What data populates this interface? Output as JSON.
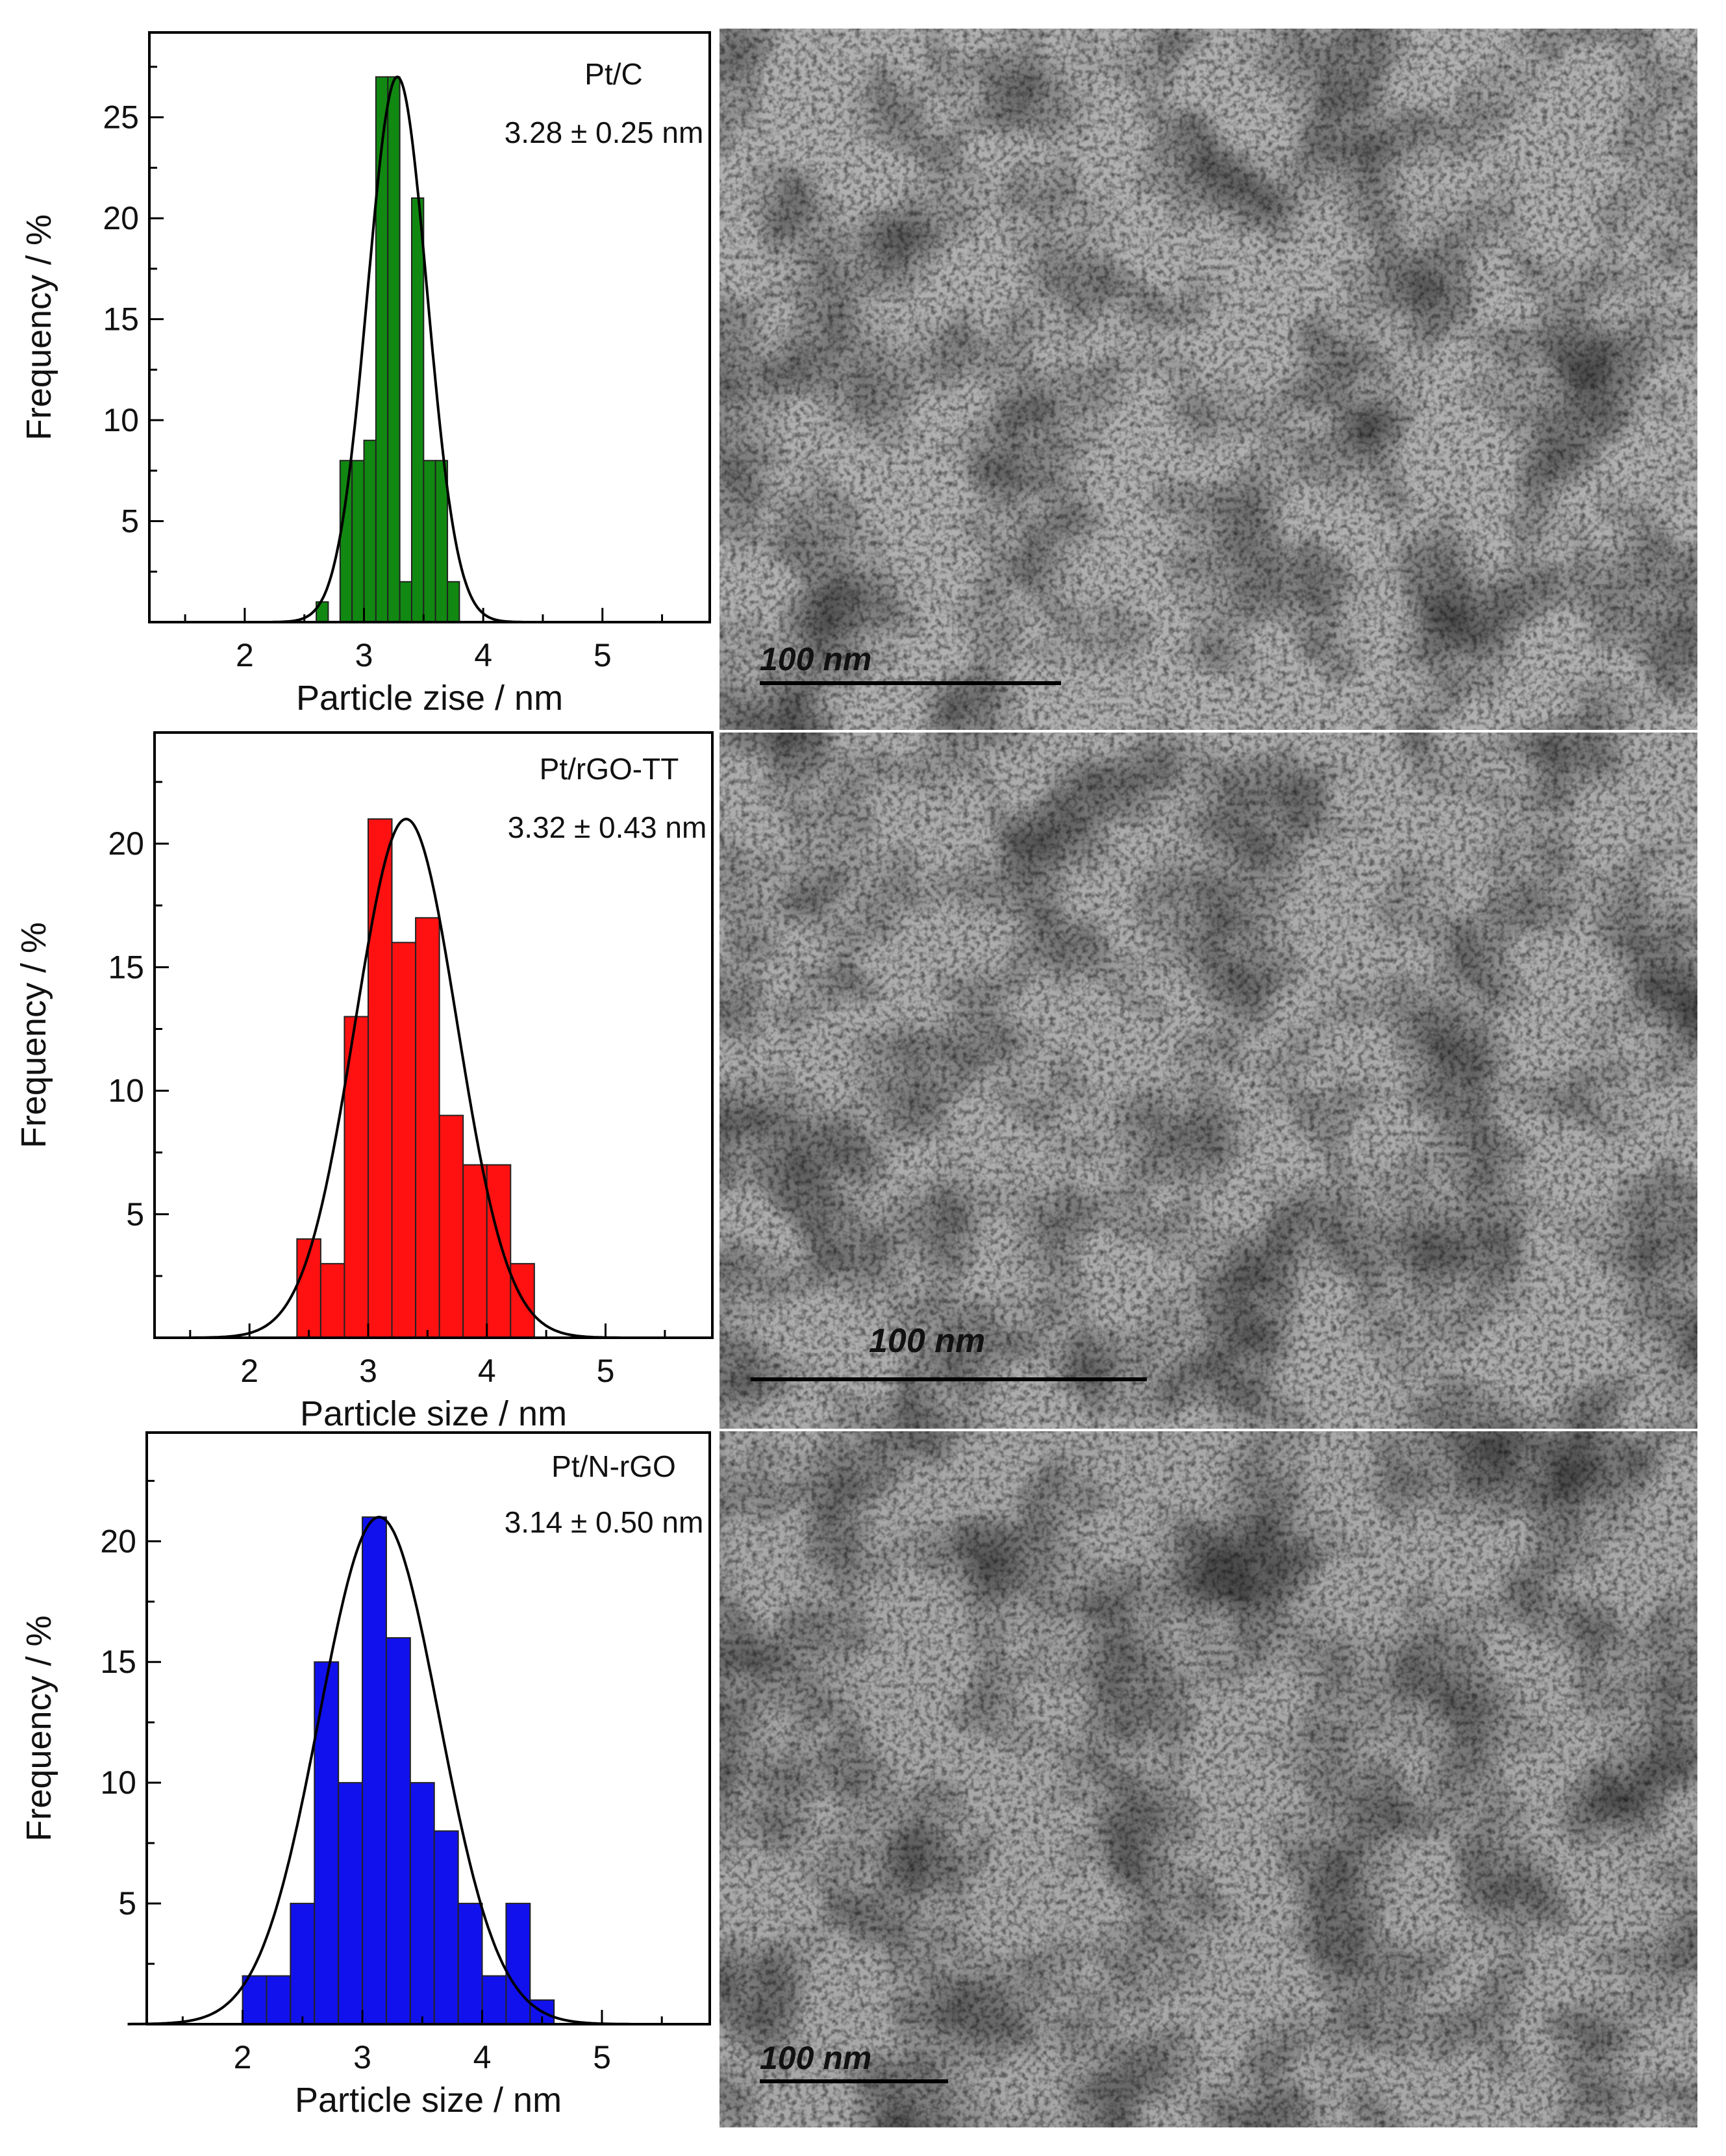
{
  "chart_data": [
    {
      "type": "bar",
      "sample": "Pt/C",
      "stat": "3.28 ± 0.25 nm",
      "xlabel": "Particle zise / nm",
      "ylabel": "Frequency / %",
      "xlim": [
        1.2,
        5.9
      ],
      "ylim": [
        0,
        29.2
      ],
      "xticks": [
        2,
        3,
        4,
        5
      ],
      "yticks": [
        5,
        10,
        15,
        20,
        25
      ],
      "bin_width": 0.1,
      "color": "#118811",
      "bin_starts": [
        2.6,
        2.8,
        2.9,
        3.0,
        3.1,
        3.2,
        3.3,
        3.4,
        3.5,
        3.6,
        3.7
      ],
      "values": [
        1,
        8,
        8,
        9,
        27,
        27,
        2,
        21,
        8,
        8,
        2
      ],
      "fit": {
        "mean": 3.28,
        "sigma": 0.25,
        "peak": 27
      },
      "micrograph": {
        "scale_label": "100 nm",
        "tone": 176
      }
    },
    {
      "type": "bar",
      "sample": "Pt/rGO-TT",
      "stat": "3.32 ± 0.43 nm",
      "xlabel": "Particle size / nm",
      "ylabel": "Frequency / %",
      "xlim": [
        1.2,
        5.9
      ],
      "ylim": [
        0,
        24.5
      ],
      "xticks": [
        2,
        3,
        4,
        5
      ],
      "yticks": [
        5,
        10,
        15,
        20
      ],
      "bin_width": 0.2,
      "color": "#ff1111",
      "bin_starts": [
        2.4,
        2.6,
        2.8,
        3.0,
        3.2,
        3.4,
        3.6,
        3.8,
        4.0,
        4.2
      ],
      "values": [
        4,
        3,
        13,
        21,
        16,
        17,
        9,
        7,
        7,
        3
      ],
      "fit": {
        "mean": 3.32,
        "sigma": 0.43,
        "peak": 21
      },
      "micrograph": {
        "scale_label": "100 nm",
        "tone": 172
      }
    },
    {
      "type": "bar",
      "sample": "Pt/N-rGO",
      "stat": "3.14 ± 0.50 nm",
      "xlabel": "Particle size / nm",
      "ylabel": "Frequency / %",
      "xlim": [
        1.2,
        5.9
      ],
      "ylim": [
        0,
        24.5
      ],
      "xticks": [
        2,
        3,
        4,
        5
      ],
      "yticks": [
        5,
        10,
        15,
        20
      ],
      "bin_width": 0.2,
      "color": "#1111ee",
      "bin_starts": [
        2.0,
        2.2,
        2.4,
        2.6,
        2.8,
        3.0,
        3.2,
        3.4,
        3.6,
        3.8,
        4.0,
        4.2,
        4.4
      ],
      "values": [
        2,
        2,
        5,
        15,
        10,
        21,
        16,
        10,
        8,
        5,
        2,
        5,
        1
      ],
      "fit": {
        "mean": 3.14,
        "sigma": 0.5,
        "peak": 21
      },
      "micrograph": {
        "scale_label": "100 nm",
        "tone": 168
      }
    }
  ]
}
